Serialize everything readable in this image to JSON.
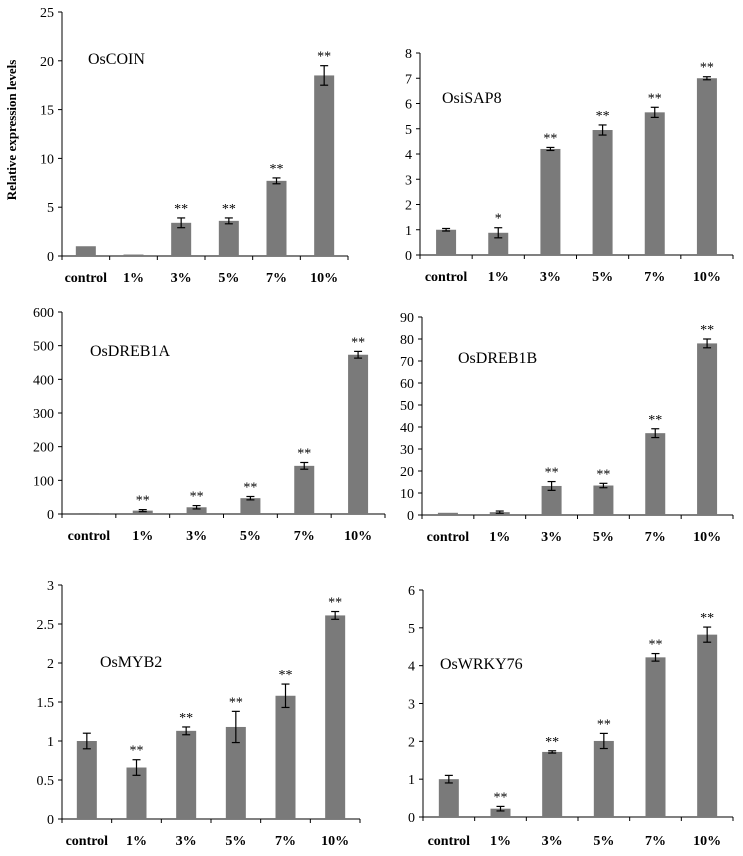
{
  "figure": {
    "ylabel": "Relative expression levels",
    "colors": {
      "bar": "#7a7a7a",
      "axis": "#000000",
      "background": "#ffffff"
    }
  },
  "chart_data": [
    {
      "type": "bar",
      "title": "OsCOIN",
      "xlabel": "",
      "ylabel": "Relative expression levels",
      "categories": [
        "control",
        "1%",
        "3%",
        "5%",
        "7%",
        "10%"
      ],
      "values": [
        1.0,
        0.15,
        3.4,
        3.6,
        7.7,
        18.5
      ],
      "errors": [
        0,
        0,
        0.5,
        0.3,
        0.3,
        1.0
      ],
      "significance": [
        "",
        "",
        "**",
        "**",
        "**",
        "**"
      ],
      "ylim": [
        0,
        25
      ],
      "yticks": [
        0,
        5,
        10,
        15,
        20,
        25
      ]
    },
    {
      "type": "bar",
      "title": "OsiSAP8",
      "xlabel": "",
      "ylabel": "",
      "categories": [
        "control",
        "1%",
        "3%",
        "5%",
        "7%",
        "10%"
      ],
      "values": [
        1.0,
        0.88,
        4.2,
        4.95,
        5.65,
        7.0
      ],
      "errors": [
        0.05,
        0.2,
        0.06,
        0.2,
        0.2,
        0.06
      ],
      "significance": [
        "",
        "*",
        "**",
        "**",
        "**",
        "**"
      ],
      "ylim": [
        0,
        8
      ],
      "yticks": [
        0,
        1,
        2,
        3,
        4,
        5,
        6,
        7,
        8
      ]
    },
    {
      "type": "bar",
      "title": "OsDREB1A",
      "xlabel": "",
      "ylabel": "",
      "categories": [
        "control",
        "1%",
        "3%",
        "5%",
        "7%",
        "10%"
      ],
      "values": [
        1,
        10,
        20,
        47,
        143,
        473
      ],
      "errors": [
        0,
        3,
        5,
        5,
        10,
        10
      ],
      "significance": [
        "",
        "**",
        "**",
        "**",
        "**",
        "**"
      ],
      "ylim": [
        0,
        600
      ],
      "yticks": [
        0,
        100,
        200,
        300,
        400,
        500,
        600
      ]
    },
    {
      "type": "bar",
      "title": "OsDREB1B",
      "xlabel": "",
      "ylabel": "",
      "categories": [
        "control",
        "1%",
        "3%",
        "5%",
        "7%",
        "10%"
      ],
      "values": [
        1.0,
        1.3,
        13.2,
        13.4,
        37.2,
        78.0
      ],
      "errors": [
        0,
        0.5,
        2.0,
        1.0,
        2.0,
        2.0
      ],
      "significance": [
        "",
        "",
        "**",
        "**",
        "**",
        "**"
      ],
      "ylim": [
        0,
        90
      ],
      "yticks": [
        0,
        10,
        20,
        30,
        40,
        50,
        60,
        70,
        80,
        90
      ]
    },
    {
      "type": "bar",
      "title": "OsMYB2",
      "xlabel": "",
      "ylabel": "",
      "categories": [
        "control",
        "1%",
        "3%",
        "5%",
        "7%",
        "10%"
      ],
      "values": [
        1.0,
        0.66,
        1.13,
        1.18,
        1.58,
        2.61
      ],
      "errors": [
        0.1,
        0.1,
        0.05,
        0.2,
        0.15,
        0.05
      ],
      "significance": [
        "",
        "**",
        "**",
        "**",
        "**",
        "**"
      ],
      "ylim": [
        0,
        3
      ],
      "yticks": [
        0,
        0.5,
        1,
        1.5,
        2,
        2.5,
        3
      ]
    },
    {
      "type": "bar",
      "title": "OsWRKY76",
      "xlabel": "",
      "ylabel": "",
      "categories": [
        "control",
        "1%",
        "3%",
        "5%",
        "7%",
        "10%"
      ],
      "values": [
        1.0,
        0.22,
        1.72,
        2.01,
        4.22,
        4.82
      ],
      "errors": [
        0.1,
        0.06,
        0.03,
        0.2,
        0.1,
        0.2
      ],
      "significance": [
        "",
        "**",
        "**",
        "**",
        "**",
        "**"
      ],
      "ylim": [
        0,
        6
      ],
      "yticks": [
        0,
        1,
        2,
        3,
        4,
        5,
        6
      ]
    }
  ]
}
